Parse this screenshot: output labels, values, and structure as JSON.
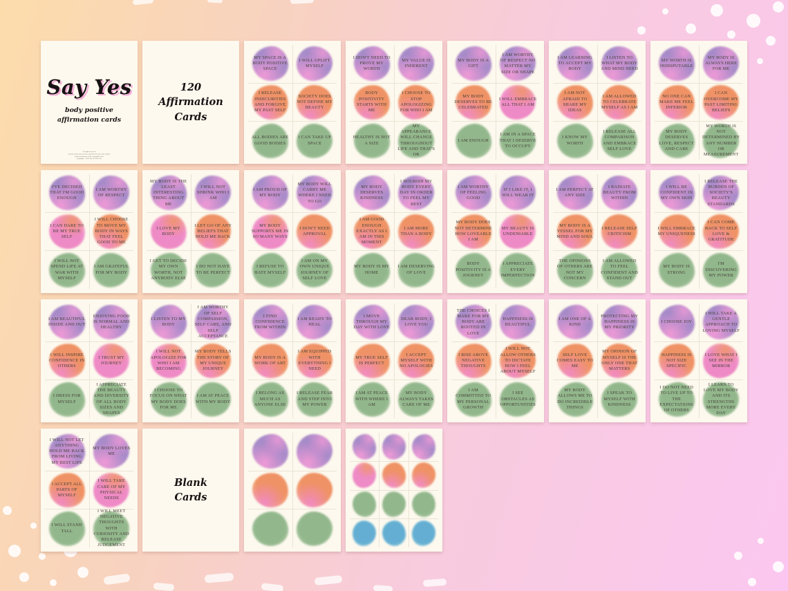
{
  "product": {
    "title": "Say Yes",
    "subtitle": "body positive\naffirmation cards",
    "card_count_label": "120\nAffirmation\nCards",
    "blank_label": "Blank\nCards"
  },
  "palette": {
    "purple": "#a78cc9",
    "orange": "#ef9265",
    "pink": "#ee8ac5",
    "green": "#92b78c",
    "blue": "#63aed2",
    "pink_fringe": "#f29ad6",
    "sheet_bg": "#fdf9ee",
    "bg_gradient": [
      "#fcdcab",
      "#f8d2c0",
      "#f8cbdd",
      "#fbc7f0"
    ]
  },
  "cells": [
    {
      "type": "title",
      "title": "Say Yes",
      "subtitle": "body positive\naffirmation cards",
      "fineprint": "All rights reserved.\nNo part of this book may be reproduced in any form without written permission of the copyright owner.\nCopyright © 2022 Say Yes Self Care"
    },
    {
      "type": "label",
      "label": "120\nAffirmation\nCards"
    },
    {
      "type": "cards",
      "cards": [
        {
          "text": "MY SPACE IS A BODY POSITIVE SPACE",
          "color": "purple"
        },
        {
          "text": "I WILL UPLIFT MYSELF",
          "color": "purple"
        },
        {
          "text": "I RELEASE INSECURITIES AND FORGIVE MY PAST SELF",
          "color": "orange"
        },
        {
          "text": "SOCIETY DOES NOT DEFINE MY BEAUTY",
          "color": "orange"
        },
        {
          "text": "ALL BODIES ARE GOOD BODIES",
          "color": "green"
        },
        {
          "text": "I CAN TAKE UP SPACE",
          "color": "green"
        }
      ]
    },
    {
      "type": "cards",
      "cards": [
        {
          "text": "I DON'T NEED TO PROVE MY WORTH",
          "color": "purple"
        },
        {
          "text": "MY VALUE IS INHERENT",
          "color": "purple"
        },
        {
          "text": "BODY POSITIVITY STARTS WITH ME",
          "color": "orange"
        },
        {
          "text": "I CHOOSE TO STOP APOLOGIZING FOR WHO I AM",
          "color": "orange"
        },
        {
          "text": "HEALTHY IS NOT A SIZE",
          "color": "green"
        },
        {
          "text": "MY APPEARANCE WILL CHANGE THROUGHOUT LIFE AND THAT'S OK",
          "color": "green"
        }
      ]
    },
    {
      "type": "cards",
      "cards": [
        {
          "text": "MY BODY IS A GIFT",
          "color": "purple"
        },
        {
          "text": "I AM WORTHY OF RESPECT NO MATTER MY SIZE OR SHAPE",
          "color": "purple"
        },
        {
          "text": "MY BODY DESERVES TO BE CELEBRATED",
          "color": "orange"
        },
        {
          "text": "I WILL EMBRACE ALL THAT I AM",
          "color": "pink"
        },
        {
          "text": "I AM ENOUGH",
          "color": "green"
        },
        {
          "text": "I AM IN A SPACE THAT I DESERVE TO OCCUPY",
          "color": "green"
        }
      ]
    },
    {
      "type": "cards",
      "cards": [
        {
          "text": "I AM LEARNING TO ACCEPT MY BODY",
          "color": "purple"
        },
        {
          "text": "I LISTEN TO WHAT MY BODY AND MIND NEED",
          "color": "purple"
        },
        {
          "text": "I AM NOT AFRAID TO SHARE MY IDEAS",
          "color": "orange"
        },
        {
          "text": "I AM ALLOWED TO CELEBRATE MYSELF AS I AM",
          "color": "orange"
        },
        {
          "text": "I KNOW MY WORTH",
          "color": "green"
        },
        {
          "text": "I RELEASE ALL COMPARISON AND EMBRACE SELF LOVE",
          "color": "green"
        }
      ]
    },
    {
      "type": "cards",
      "cards": [
        {
          "text": "MY WORTH IS INDISPUTABLE",
          "color": "purple"
        },
        {
          "text": "MY BODY IS ALWAYS HERE FOR ME",
          "color": "purple"
        },
        {
          "text": "NO ONE CAN MAKE ME FEEL INFERIOR",
          "color": "orange"
        },
        {
          "text": "I CAN OVERCOME MY PAST LIMITING BELIEFS",
          "color": "orange"
        },
        {
          "text": "MY BODY DESERVES LOVE, RESPECT AND CARE",
          "color": "green"
        },
        {
          "text": "MY WORTH IS NOT DETERMINED BY ANY NUMBER OR MEASUREMENT",
          "color": "green"
        }
      ]
    },
    {
      "type": "cards",
      "cards": [
        {
          "text": "I'VE DECIDED THAT I'M GOOD ENOUGH",
          "color": "purple"
        },
        {
          "text": "I AM WORTHY OF RESPECT",
          "color": "purple"
        },
        {
          "text": "I CAN DARE TO BE MY TRUE SELF",
          "color": "pink"
        },
        {
          "text": "I WILL CHOOSE TO MOVE MY BODY IN WAYS THAT FEEL GOOD TO ME",
          "color": "orange"
        },
        {
          "text": "I WILL NOT SPEND LIFE AT WAR WITH MYSELF",
          "color": "green"
        },
        {
          "text": "I AM GRATEFUL FOR MY BODY",
          "color": "green"
        }
      ]
    },
    {
      "type": "cards",
      "cards": [
        {
          "text": "MY BODY IS THE LEAST INTERESTING THING ABOUT ME",
          "color": "purple"
        },
        {
          "text": "I WILL NOT SHRINK WHO I AM",
          "color": "purple"
        },
        {
          "text": "I LOVE MY BODY",
          "color": "pink"
        },
        {
          "text": "I LET GO OF ANY BELIEFS THAT HOLD ME BACK",
          "color": "orange"
        },
        {
          "text": "I GET TO DECIDE MY OWN WORTH, NOT ANYBODY ELSE",
          "color": "green"
        },
        {
          "text": "I DO NOT HAVE TO BE PERFECT",
          "color": "green"
        }
      ]
    },
    {
      "type": "cards",
      "cards": [
        {
          "text": "I AM PROUD OF MY BODY",
          "color": "purple"
        },
        {
          "text": "MY BODY WILL CARRY ME WHERE I NEED TO GO",
          "color": "purple"
        },
        {
          "text": "MY BODY SUPPORTS ME IN SO MANY WAYS",
          "color": "pink"
        },
        {
          "text": "I DON'T NEED APPROVAL",
          "color": "orange"
        },
        {
          "text": "I REFUSE TO HATE MYSELF",
          "color": "green"
        },
        {
          "text": "I AM ON MY OWN UNIQUE JOURNEY OF SELF LOVE",
          "color": "green"
        }
      ]
    },
    {
      "type": "cards",
      "cards": [
        {
          "text": "MY BODY DESERVES KINDNESS",
          "color": "purple"
        },
        {
          "text": "I NOURISH MY BODY EVERY DAY IN ORDER TO FEEL MY BEST",
          "color": "purple"
        },
        {
          "text": "I AM GOOD ENOUGH EXACTLY AS I AM IN THIS MOMENT",
          "color": "orange"
        },
        {
          "text": "I AM MORE THAN A BODY",
          "color": "orange"
        },
        {
          "text": "MY BODY IS MY HOME",
          "color": "green"
        },
        {
          "text": "I AM DESERVING OF LOVE",
          "color": "green"
        }
      ]
    },
    {
      "type": "cards",
      "cards": [
        {
          "text": "I AM WORTHY OF FEELING GOOD",
          "color": "purple"
        },
        {
          "text": "IF I LIKE IT, I WILL WEAR IT",
          "color": "purple"
        },
        {
          "text": "MY BODY DOES NOT DETERMINE HOW LOVEABLE I AM",
          "color": "orange"
        },
        {
          "text": "MY BEAUTY IS UNDENIABLE",
          "color": "pink"
        },
        {
          "text": "BODY POSITIVITY IS A JOURNEY",
          "color": "green"
        },
        {
          "text": "I APPRECIATE EVERY IMPERFECTION",
          "color": "green"
        }
      ]
    },
    {
      "type": "cards",
      "cards": [
        {
          "text": "I AM PERFECT AT ANY SIZE",
          "color": "purple"
        },
        {
          "text": "I RADIATE BEAUTY FROM WITHIN",
          "color": "purple"
        },
        {
          "text": "MY BODY IS A VESSEL FOR MY MIND AND SOUL",
          "color": "orange"
        },
        {
          "text": "I RELEASE SELF CRITICISM",
          "color": "orange"
        },
        {
          "text": "THE OPINIONS OF OTHERS ARE NOT MY CONCERN",
          "color": "green"
        },
        {
          "text": "I AM ALLOWED TO FEEL CONFIDENT AND STAND OUT",
          "color": "green"
        }
      ]
    },
    {
      "type": "cards",
      "cards": [
        {
          "text": "I WILL BE CONFIDENT IN MY OWN SKIN",
          "color": "purple"
        },
        {
          "text": "I RELEASE THE BURDEN OF SOCIETY'S BEAUTY STANDARDS",
          "color": "purple"
        },
        {
          "text": "I WILL EMBRACE MY UNIQUENESS",
          "color": "orange"
        },
        {
          "text": "I CAN COME BACK TO SELF LOVE & GRATITUDE",
          "color": "orange"
        },
        {
          "text": "MY BODY IS STRONG",
          "color": "green"
        },
        {
          "text": "I'M DISCOVERING MY POWER",
          "color": "green"
        }
      ]
    },
    {
      "type": "cards",
      "cards": [
        {
          "text": "I AM BEAUTIFUL INSIDE AND OUT",
          "color": "purple"
        },
        {
          "text": "ENJOYING FOOD IS NORMAL AND HEALTHY",
          "color": "purple"
        },
        {
          "text": "I WILL INSPIRE CONFIDENCE IN OTHERS",
          "color": "orange"
        },
        {
          "text": "I TRUST MY JOURNEY",
          "color": "pink"
        },
        {
          "text": "I DRESS FOR MYSELF",
          "color": "green"
        },
        {
          "text": "I APPRECIATE THE BEAUTY AND DIVERSITY OF ALL BODY SIZES AND SHAPES",
          "color": "green"
        }
      ]
    },
    {
      "type": "cards",
      "cards": [
        {
          "text": "I LISTEN TO MY BODY",
          "color": "purple"
        },
        {
          "text": "I AM WORTHY OF SELF COMPASSION, SELF CARE, AND SELF ACCEPTANCE",
          "color": "purple"
        },
        {
          "text": "I WILL NOT APOLOGIZE FOR WHO I AM BECOMING",
          "color": "pink"
        },
        {
          "text": "MY BODY TELLS THE STORY OF MY UNIQUE JOURNEY",
          "color": "orange"
        },
        {
          "text": "I CHOOSE TO FOCUS ON WHAT MY BODY DOES FOR ME",
          "color": "green"
        },
        {
          "text": "I AM AT PEACE WITH MY BODY",
          "color": "green"
        }
      ]
    },
    {
      "type": "cards",
      "cards": [
        {
          "text": "I FIND CONFIDENCE FROM WITHIN",
          "color": "purple"
        },
        {
          "text": "I AM READY TO HEAL",
          "color": "purple"
        },
        {
          "text": "MY BODY IS A WORK OF ART",
          "color": "orange"
        },
        {
          "text": "I AM EQUIPPED WITH EVERYTHING I NEED",
          "color": "orange"
        },
        {
          "text": "I BELONG AS MUCH AS ANYONE ELSE",
          "color": "green"
        },
        {
          "text": "I RELEASE FEAR AND STEP INTO MY POWER",
          "color": "green"
        }
      ]
    },
    {
      "type": "cards",
      "cards": [
        {
          "text": "I MOVE THROUGH MY DAY WITH LOVE",
          "color": "purple"
        },
        {
          "text": "DEAR BODY, I LOVE YOU",
          "color": "purple"
        },
        {
          "text": "MY TRUE SELF IS PERFECT",
          "color": "orange"
        },
        {
          "text": "I ACCEPT MYSELF WITH NO APOLOGIES",
          "color": "orange"
        },
        {
          "text": "I AM AT PEACE WITH WHERE I AM",
          "color": "green"
        },
        {
          "text": "MY BODY ALWAYS TAKES CARE OF ME",
          "color": "green"
        }
      ]
    },
    {
      "type": "cards",
      "cards": [
        {
          "text": "THE CHOICES I MAKE FOR MY BODY ARE ROOTED IN LOVE",
          "color": "purple"
        },
        {
          "text": "HAPPINESS IS BEAUTIFUL",
          "color": "purple"
        },
        {
          "text": "I RISE ABOVE NEGATIVE THOUGHTS",
          "color": "orange"
        },
        {
          "text": "I WILL NOT ALLOW OTHERS TO DICTATE HOW I FEEL ABOUT MYSELF",
          "color": "orange"
        },
        {
          "text": "I AM COMMITTED TO MY PERSONAL GROWTH",
          "color": "green"
        },
        {
          "text": "I SEE OBSTACLES AS OPPORTUNITIES",
          "color": "green"
        }
      ]
    },
    {
      "type": "cards",
      "cards": [
        {
          "text": "I AM ONE OF A KIND",
          "color": "purple"
        },
        {
          "text": "PROTECTING MY HAPPINESS IS MY PRIORITY",
          "color": "purple"
        },
        {
          "text": "SELF LOVE COMES EASY TO ME",
          "color": "orange"
        },
        {
          "text": "MY OPINION OF MYSELF IS THE ONLY ONE THAT MATTERS",
          "color": "orange"
        },
        {
          "text": "MY BODY ALLOWS ME TO DO INCREDIBLE THINGS",
          "color": "green"
        },
        {
          "text": "I SPEAK TO MYSELF WITH KINDNESS",
          "color": "green"
        }
      ]
    },
    {
      "type": "cards",
      "cards": [
        {
          "text": "I CHOOSE JOY",
          "color": "purple"
        },
        {
          "text": "I WILL TAKE A GENTLE APPROACH TO LOVING MYSELF",
          "color": "purple"
        },
        {
          "text": "HAPPINESS IS NOT SIZE SPECIFIC",
          "color": "orange"
        },
        {
          "text": "I LOVE WHAT I SEE IN THE MIRROR",
          "color": "pink"
        },
        {
          "text": "I DO NOT NEED TO LIVE UP TO THE EXPECTATIONS OF OTHERS",
          "color": "green"
        },
        {
          "text": "I LEARN TO LOVE MY BODY AND ITS STRENGTHS MORE EVERY DAY",
          "color": "green"
        }
      ]
    },
    {
      "type": "cards",
      "cards": [
        {
          "text": "I WILL NOT LET ANYTHING HOLD ME BACK FROM LIVING MY BEST LIFE",
          "color": "purple"
        },
        {
          "text": "MY BODY LOVES ME",
          "color": "purple"
        },
        {
          "text": "I ACCEPT ALL PARTS OF MYSELF",
          "color": "orange"
        },
        {
          "text": "I WILL TAKE CARE OF MY PHYSICAL NEEDS",
          "color": "pink"
        },
        {
          "text": "I WILL STAND TALL",
          "color": "green"
        },
        {
          "text": "I WILL MEET NEGATIVE THOUGHTS WITH CURIOSITY AND RELEASE JUDGEMENT",
          "color": "green"
        }
      ]
    },
    {
      "type": "label",
      "label": "Blank\nCards"
    },
    {
      "type": "blanks",
      "cols": 2,
      "colors": [
        "purple",
        "purple",
        "orange",
        "orange",
        "green",
        "green"
      ]
    },
    {
      "type": "blanks",
      "cols": 3,
      "colors": [
        "purple",
        "purple",
        "purple",
        "pink",
        "orange",
        "orange",
        "green",
        "green",
        "green",
        "blue",
        "blue",
        "blue"
      ]
    }
  ]
}
